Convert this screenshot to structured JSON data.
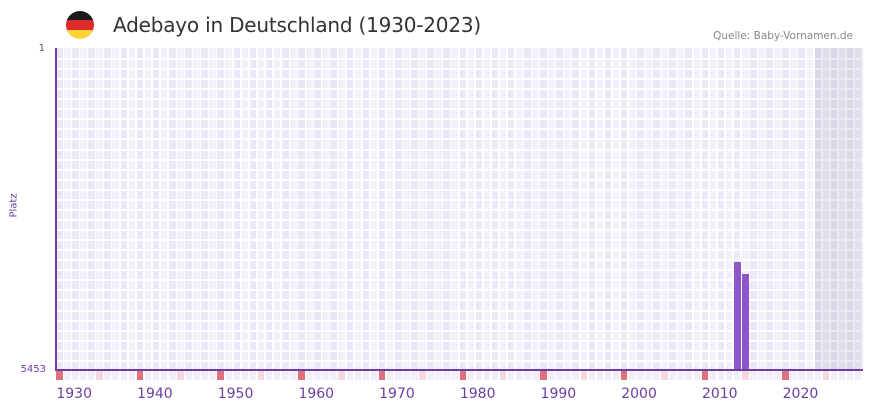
{
  "header": {
    "title": "Adebayo in Deutschland (1930-2023)",
    "source": "Quelle: Baby-Vornamen.de",
    "flag_icon": "germany-flag-icon",
    "flag_colors": [
      "#1a1a1a",
      "#dd2a2a",
      "#ffd133"
    ]
  },
  "colors": {
    "bar": "#8e57c9",
    "axis": "#6b3fa0",
    "col_light": "#f3f0fb",
    "col_dark": "#ece7f7",
    "decade_marker": "#e0707c",
    "half_decade_marker": "#f5d7df",
    "neutral_marker": "#f1edfa"
  },
  "chart_data": {
    "type": "bar",
    "title": "Adebayo in Deutschland (1930-2023)",
    "xlabel": "",
    "ylabel": "Platz",
    "y_axis_inverted": true,
    "ylim": [
      1,
      5453
    ],
    "y_ticks": [
      "1",
      "5453"
    ],
    "x_range": [
      1928,
      2027
    ],
    "x_ticks": [
      "1930",
      "1940",
      "1950",
      "1960",
      "1970",
      "1980",
      "1990",
      "2000",
      "2010",
      "2020"
    ],
    "categories": [
      2012,
      2013
    ],
    "values": [
      3624,
      3828
    ],
    "shaded_region_from_year": 2022,
    "grid": true,
    "legend": null
  },
  "axis": {
    "y_top": "1",
    "y_bottom": "5453",
    "y_title": "Platz",
    "x_labels": [
      "1930",
      "1940",
      "1950",
      "1960",
      "1970",
      "1980",
      "1990",
      "2000",
      "2010",
      "2020"
    ]
  }
}
